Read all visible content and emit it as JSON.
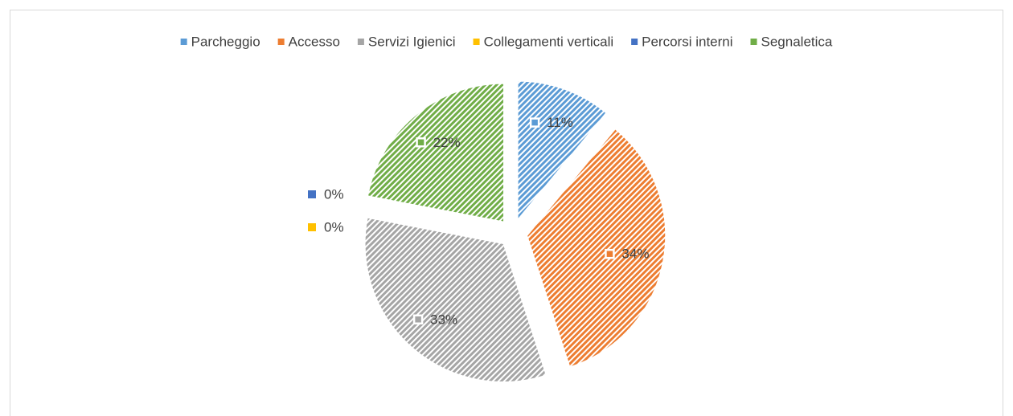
{
  "chart_data": {
    "type": "pie",
    "categories": [
      "Parcheggio",
      "Accesso",
      "Servizi Igienici",
      "Collegamenti verticali",
      "Percorsi interni",
      "Segnaletica"
    ],
    "values": [
      11,
      34,
      33,
      0,
      0,
      22
    ],
    "value_labels": [
      "11%",
      "34%",
      "33%",
      "0%",
      "0%",
      "22%"
    ],
    "colors": [
      "#5b9bd5",
      "#ed7d31",
      "#a5a5a5",
      "#ffc000",
      "#4472c4",
      "#70ad47"
    ],
    "legend": "top"
  }
}
